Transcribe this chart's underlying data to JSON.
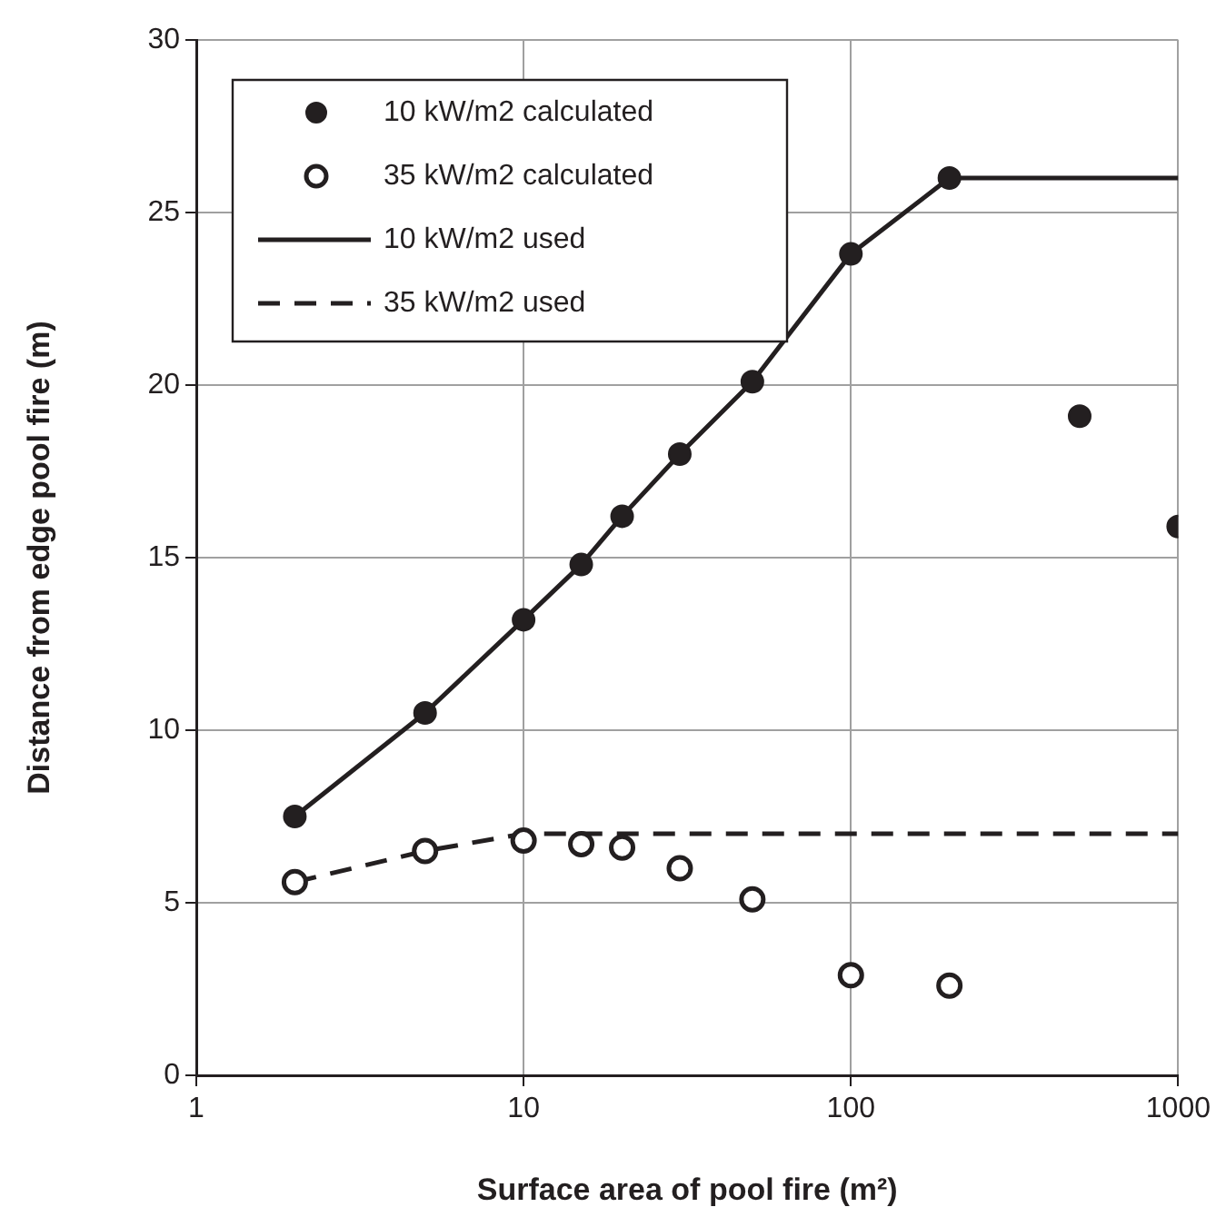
{
  "chart_data": {
    "type": "scatter",
    "xlabel": "Surface area of pool fire (m²)",
    "ylabel": "Distance from edge pool fire (m)",
    "log": "x",
    "xlim": [
      1,
      1000
    ],
    "xticks": [
      1,
      10,
      100,
      1000
    ],
    "ylim": [
      0,
      30
    ],
    "yticks": [
      0,
      5,
      10,
      15,
      20,
      25,
      30
    ],
    "grid": true,
    "legend": "top left",
    "series": [
      {
        "name": "10 kW/m2 calculated",
        "type": "scatter",
        "marker": "circle",
        "color": "#231f20",
        "x": [
          2,
          5,
          10,
          15,
          20,
          30,
          50,
          100,
          200,
          500,
          1000
        ],
        "values": [
          7.5,
          10.5,
          13.2,
          14.8,
          16.2,
          18.0,
          20.1,
          23.8,
          26.0,
          19.1,
          15.9
        ]
      },
      {
        "name": "35 kW/m2 calculated",
        "type": "scatter",
        "marker": "circle",
        "color": "#ffffff",
        "x": [
          2,
          5,
          10,
          15,
          20,
          30,
          50,
          100,
          200
        ],
        "values": [
          5.6,
          6.5,
          6.8,
          6.7,
          6.6,
          6.0,
          5.1,
          2.9,
          2.6
        ]
      },
      {
        "name": "10 kW/m2 used",
        "type": "line",
        "marker": "none",
        "line_style": "solid",
        "color": "#231f20",
        "x": [
          2,
          5,
          10,
          15,
          20,
          30,
          50,
          100,
          200,
          1000
        ],
        "values": [
          7.5,
          10.5,
          13.2,
          14.8,
          16.2,
          18.0,
          20.1,
          23.8,
          26.0,
          26.0
        ]
      },
      {
        "name": "35 kW/m2 used",
        "type": "line",
        "marker": "none",
        "line_style": "dashed",
        "color": "#231f20",
        "x": [
          2,
          5,
          10,
          1000
        ],
        "values": [
          5.6,
          6.5,
          7.0,
          7.0
        ]
      }
    ]
  }
}
